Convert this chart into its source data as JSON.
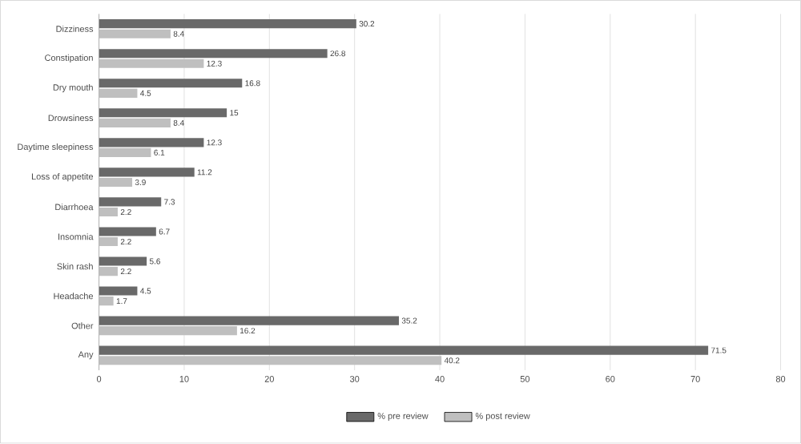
{
  "chart_data": {
    "type": "bar",
    "orientation": "horizontal",
    "categories": [
      "Dizziness",
      "Constipation",
      "Dry mouth",
      "Drowsiness",
      "Daytime sleepiness",
      "Loss of appetite",
      "Diarrhoea",
      "Insomnia",
      "Skin rash",
      "Headache",
      "Other",
      "Any"
    ],
    "series": [
      {
        "name": "% pre review",
        "color": "#696969",
        "values": [
          30.2,
          26.8,
          16.8,
          15,
          12.3,
          11.2,
          7.3,
          6.7,
          5.6,
          4.5,
          35.2,
          71.5
        ]
      },
      {
        "name": "% post review",
        "color": "#bfbfbf",
        "values": [
          8.4,
          12.3,
          4.5,
          8.4,
          6.1,
          3.9,
          2.2,
          2.2,
          2.2,
          1.7,
          16.2,
          40.2
        ]
      }
    ],
    "xlim": [
      0,
      80
    ],
    "xticks": [
      0,
      10,
      20,
      30,
      40,
      50,
      60,
      70,
      80
    ],
    "grid": "x",
    "legend": "bottom",
    "data_labels": true
  }
}
